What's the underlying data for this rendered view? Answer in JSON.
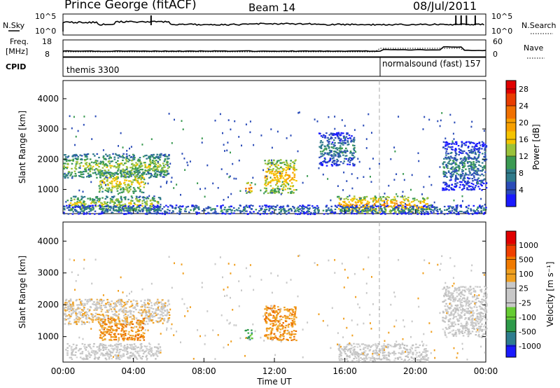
{
  "header": {
    "title": "Prince George (fitACF)",
    "beam": "Beam 14",
    "date": "08/Jul/2011"
  },
  "top_panels": {
    "nsky": {
      "label": "N.Sky",
      "ticks": [
        "10^5",
        "10^0"
      ]
    },
    "nsearch": {
      "label": "N.Search",
      "ticks": [
        "10^5",
        "10^0"
      ]
    },
    "freq": {
      "label_line1": "Freq.",
      "label_line2": "[MHz]",
      "ticks": [
        "18",
        "8"
      ]
    },
    "nave": {
      "label": "Nave",
      "ticks": [
        "60",
        "0"
      ]
    },
    "cpid": {
      "label": "CPID",
      "segments": [
        {
          "name": "themis 3300",
          "start_hour": 0
        },
        {
          "name": "normalsound (fast) 157",
          "start_hour": 18.05
        }
      ]
    }
  },
  "chart_data": [
    {
      "type": "heatmap",
      "name": "power",
      "ylabel": "Slant Range [km]",
      "xlabel": "",
      "xlim": [
        0,
        24
      ],
      "ylim": [
        200,
        4600
      ],
      "yticks": [
        1000,
        2000,
        3000,
        4000
      ],
      "colorbar": {
        "label": "Power [dB]",
        "ticks": [
          "4",
          "8",
          "12",
          "16",
          "20",
          "24",
          "28"
        ],
        "range": [
          0,
          30
        ],
        "colors": [
          "#1a1aff",
          "#2b4cb8",
          "#2f7a8a",
          "#3b9a52",
          "#9ac23a",
          "#f5c400",
          "#f7a000",
          "#f07000",
          "#e83d00",
          "#e00000"
        ]
      },
      "echo_regions": [
        {
          "t0": 0.0,
          "t1": 6.0,
          "r0": 1400,
          "r1": 2200,
          "p": 11
        },
        {
          "t0": 0.2,
          "t1": 5.5,
          "r0": 300,
          "r1": 800,
          "p": 12
        },
        {
          "t0": 2.0,
          "t1": 4.6,
          "r0": 900,
          "r1": 1600,
          "p": 14
        },
        {
          "t0": 10.3,
          "t1": 10.7,
          "r0": 900,
          "r1": 1250,
          "p": 18
        },
        {
          "t0": 11.4,
          "t1": 13.2,
          "r0": 900,
          "r1": 2000,
          "p": 16
        },
        {
          "t0": 14.5,
          "t1": 16.5,
          "r0": 1800,
          "r1": 2900,
          "p": 6
        },
        {
          "t0": 15.6,
          "t1": 20.7,
          "r0": 250,
          "r1": 800,
          "p": 17
        },
        {
          "t0": 21.5,
          "t1": 24.0,
          "r0": 1000,
          "r1": 2600,
          "p": 6
        },
        {
          "t0": 0.0,
          "t1": 24.0,
          "r0": 200,
          "r1": 500,
          "p": 6
        }
      ]
    },
    {
      "type": "heatmap",
      "name": "velocity",
      "ylabel": "Slant Range [km]",
      "xlabel": "Time UT",
      "xlim": [
        0,
        24
      ],
      "ylim": [
        200,
        4600
      ],
      "yticks": [
        1000,
        2000,
        3000,
        4000
      ],
      "xticks": [
        "00:00",
        "04:00",
        "08:00",
        "12:00",
        "16:00",
        "20:00",
        "00:00"
      ],
      "colorbar": {
        "label": "Velocity [m s⁻¹]",
        "ticks": [
          "1000",
          "500",
          "100",
          "25",
          "-25",
          "-100",
          "-500",
          "-1000"
        ],
        "colors": [
          "#1a1aff",
          "#2e7d8f",
          "#2e9a4a",
          "#66cc33",
          "#c8c8c8",
          "#c8c8c8",
          "#f0a020",
          "#f07a00",
          "#f04000",
          "#e00000"
        ]
      },
      "echo_regions": [
        {
          "t0": 0.0,
          "t1": 6.0,
          "r0": 1400,
          "r1": 2200,
          "v": "gray-orange"
        },
        {
          "t0": 0.2,
          "t1": 5.5,
          "r0": 300,
          "r1": 800,
          "v": "gray"
        },
        {
          "t0": 2.0,
          "t1": 4.6,
          "r0": 900,
          "r1": 1600,
          "v": "orange"
        },
        {
          "t0": 10.3,
          "t1": 10.7,
          "r0": 900,
          "r1": 1250,
          "v": "green"
        },
        {
          "t0": 11.4,
          "t1": 13.2,
          "r0": 900,
          "r1": 2000,
          "v": "orange"
        },
        {
          "t0": 15.6,
          "t1": 20.7,
          "r0": 250,
          "r1": 800,
          "v": "gray"
        },
        {
          "t0": 21.5,
          "t1": 24.0,
          "r0": 1000,
          "r1": 2600,
          "v": "gray"
        }
      ]
    }
  ]
}
